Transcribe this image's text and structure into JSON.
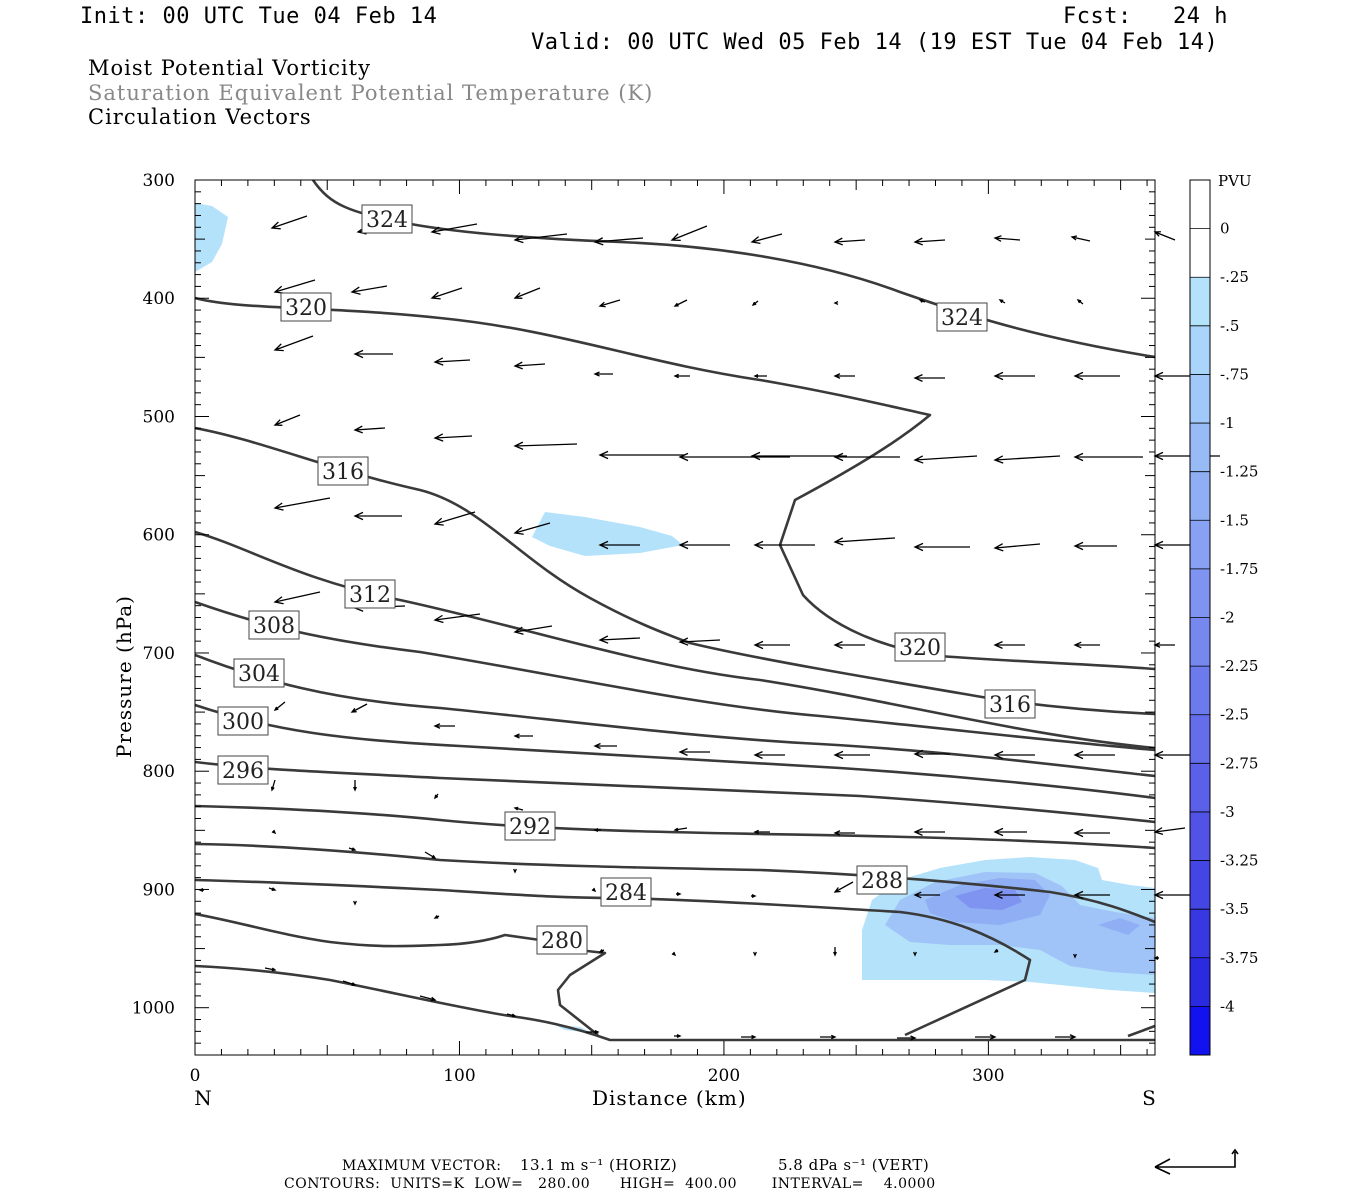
{
  "header": {
    "init": "Init: 00 UTC Tue 04 Feb 14",
    "fcst": "Fcst:   24 h",
    "valid": "Valid: 00 UTC Wed 05 Feb 14 (19 EST Tue 04 Feb 14)"
  },
  "titles": {
    "line1": "Moist Potential Vorticity",
    "line2": "Saturation Equivalent Potential Temperature (K)",
    "line3": "Circulation Vectors"
  },
  "colors": {
    "contour": "#333333",
    "title_gray": "#888888",
    "pv_fill_light": "#b4e2fb",
    "pv_fill_mid": "#a0bff7",
    "pv_fill_dark": "#8a9ef0"
  },
  "chart_data": {
    "type": "cross-section",
    "xlabel": "Distance (km)",
    "ylabel": "Pressure (hPa)",
    "xlim": [
      0,
      363
    ],
    "ylim": [
      1040,
      300
    ],
    "x_ticks": [
      0,
      100,
      200,
      300
    ],
    "y_ticks": [
      300,
      400,
      500,
      600,
      700,
      800,
      900,
      1000
    ],
    "x_end_labels": {
      "left": "N",
      "right": "S"
    },
    "colorbar": {
      "unit": "PVU",
      "levels": [
        "0",
        "-.25",
        "-.5",
        "-.75",
        "-1",
        "-1.25",
        "-1.5",
        "-1.75",
        "-2",
        "-2.25",
        "-2.5",
        "-2.75",
        "-3",
        "-3.25",
        "-3.5",
        "-3.75",
        "-4"
      ],
      "colors": [
        "#ffffff",
        "#ffffff",
        "#b4e2fb",
        "#aad5fa",
        "#a0c8f8",
        "#98bbf6",
        "#90aef4",
        "#88a1f2",
        "#7f94f0",
        "#7687ee",
        "#6d7aec",
        "#646dea",
        "#5a60e8",
        "#5053e6",
        "#4446e4",
        "#3838e2",
        "#2a2ae0",
        "#1212f0"
      ]
    },
    "contour_labels": [
      "324",
      "324",
      "320",
      "320",
      "316",
      "316",
      "312",
      "308",
      "304",
      "300",
      "296",
      "292",
      "288",
      "284",
      "280"
    ],
    "footer": {
      "max_vector_label": "MAXIMUM VECTOR:",
      "horiz": "13.1 m s⁻¹ (HORIZ)",
      "vert": "5.8 dPa s⁻¹ (VERT)",
      "contours": "CONTOURS:  UNITS=K  LOW=   280.00      HIGH=  400.00       INTERVAL=    4.0000"
    }
  }
}
